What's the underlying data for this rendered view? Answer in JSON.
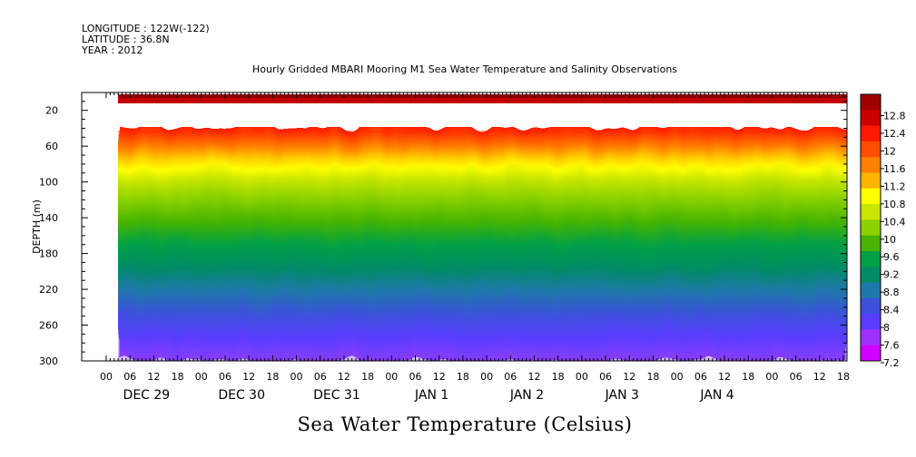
{
  "header": {
    "longitude": "LONGITUDE : 122W(-122)",
    "latitude": "LATITUDE : 36.8N",
    "year": "YEAR : 2012"
  },
  "chart_data": {
    "type": "heatmap",
    "title": "Hourly Gridded MBARI Mooring M1 Sea Water Temperature and Salinity Observations",
    "xlabel": "",
    "ylabel": "DEPTH (m)",
    "colorbar_label": "Sea Water Temperature (Celsius)",
    "y_range": [
      300,
      0
    ],
    "y_ticks": [
      20,
      60,
      100,
      140,
      180,
      220,
      260,
      300
    ],
    "x_hour_labels": [
      "00",
      "06",
      "12",
      "18",
      "00",
      "06",
      "12",
      "18",
      "00",
      "06",
      "12",
      "18",
      "00",
      "06",
      "12",
      "18",
      "00",
      "06",
      "12",
      "18",
      "00",
      "06",
      "12",
      "18",
      "00",
      "06",
      "12",
      "18",
      "00",
      "06",
      "12",
      "18"
    ],
    "x_day_labels": [
      "DEC 29",
      "DEC 30",
      "DEC 31",
      "JAN 1",
      "JAN 2",
      "JAN 3",
      "JAN 4"
    ],
    "data_start": "DEC 29 06:00",
    "data_end": "JAN 4 23:00",
    "colorbar_levels": [
      "12.8",
      "12.4",
      "12",
      "11.6",
      "11.2",
      "10.8",
      "10.4",
      "10",
      "9.6",
      "9.2",
      "8.8",
      "8.4",
      "8",
      "7.6",
      "7.2"
    ],
    "colorbar_colors": [
      "#a00000",
      "#cc0000",
      "#ff1a00",
      "#ff4d00",
      "#ff8000",
      "#ffb400",
      "#ffff00",
      "#c8e600",
      "#8cd200",
      "#46b400",
      "#00a046",
      "#008c64",
      "#1e78aa",
      "#3c50dc",
      "#5a3cff",
      "#a030ff",
      "#d200ff"
    ],
    "depth_profile": [
      {
        "depth": 10,
        "temp": 12.8
      },
      {
        "depth": 40,
        "temp": 12.2
      },
      {
        "depth": 55,
        "temp": 11.5
      },
      {
        "depth": 70,
        "temp": 10.8
      },
      {
        "depth": 90,
        "temp": 10.2
      },
      {
        "depth": 120,
        "temp": 9.6
      },
      {
        "depth": 160,
        "temp": 9.0
      },
      {
        "depth": 200,
        "temp": 8.5
      },
      {
        "depth": 240,
        "temp": 8.0
      },
      {
        "depth": 280,
        "temp": 7.6
      },
      {
        "depth": 300,
        "temp": 7.4
      }
    ],
    "grid": false
  }
}
